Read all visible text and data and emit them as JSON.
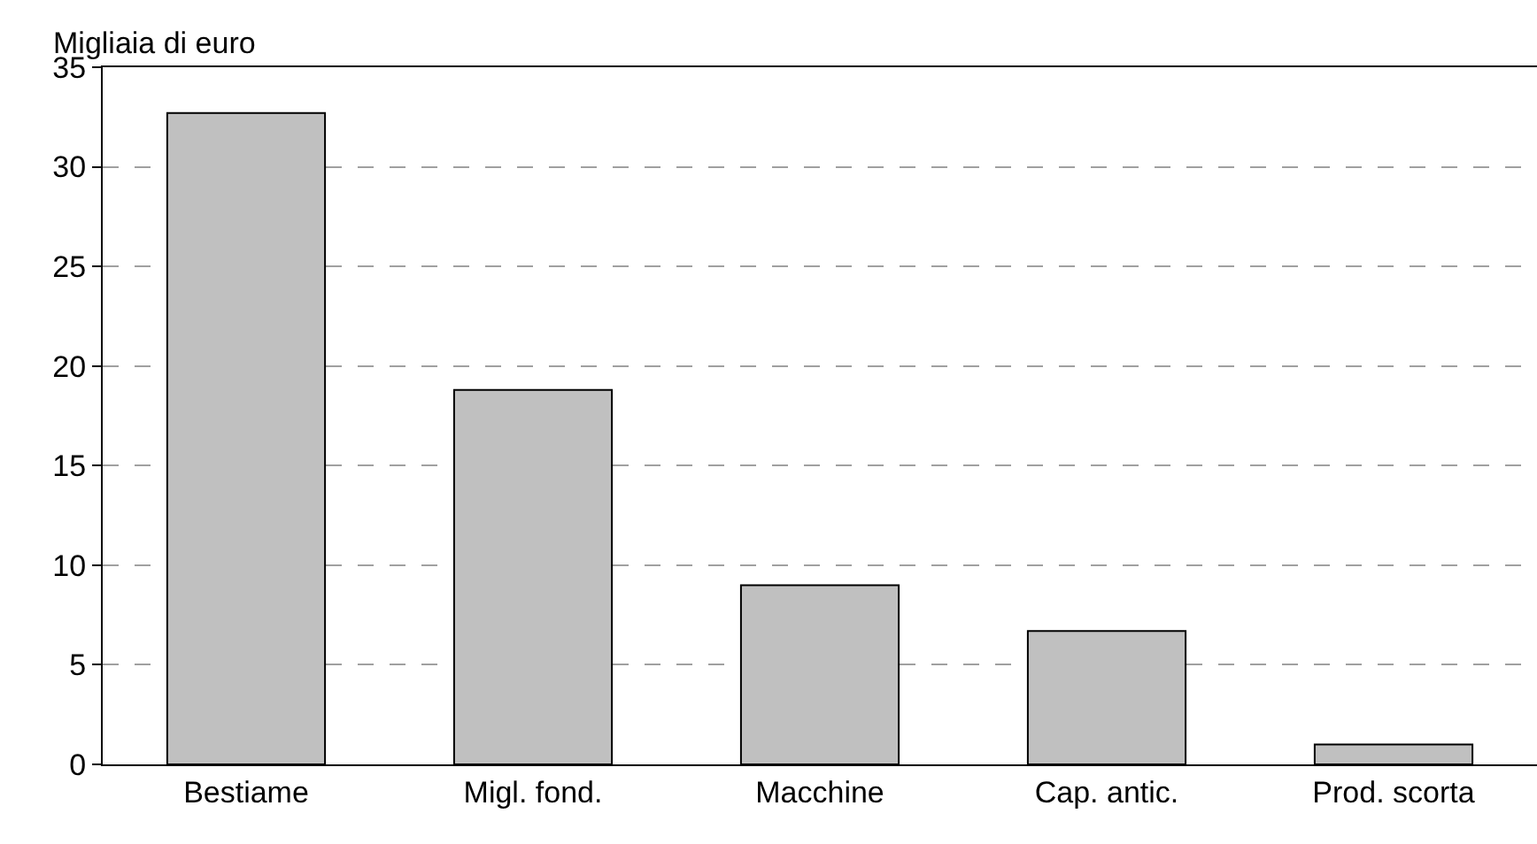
{
  "chart_data": {
    "type": "bar",
    "ylabel": "Migliaia di euro",
    "categories": [
      "Bestiame",
      "Migl. fond.",
      "Macchine",
      "Cap. antic.",
      "Prod. scorta"
    ],
    "values": [
      32.7,
      18.8,
      9.0,
      6.7,
      1.0
    ],
    "color": "#c0c0c0",
    "ylim": [
      0,
      35
    ],
    "yticks": [
      0,
      5,
      10,
      15,
      20,
      25,
      30,
      35
    ],
    "grid": "y",
    "legend": false
  }
}
